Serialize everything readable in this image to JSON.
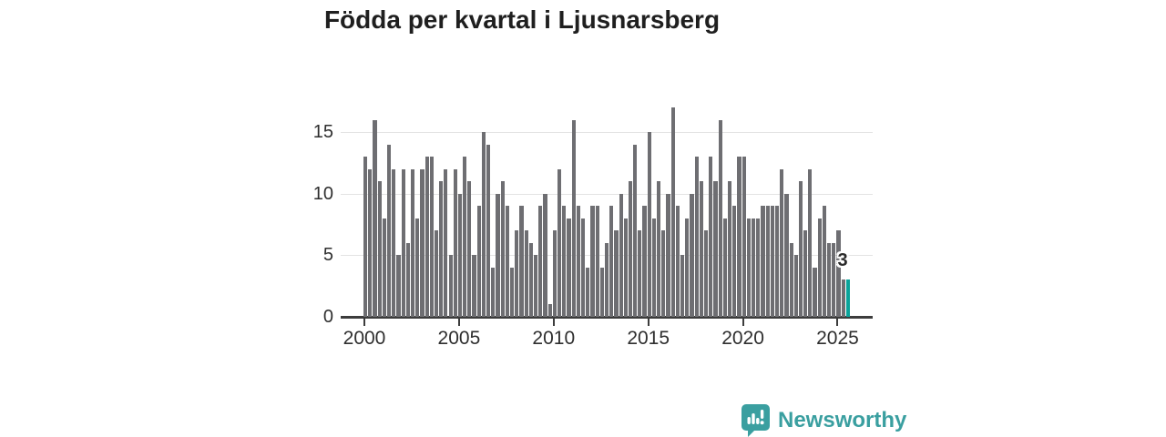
{
  "title": "Födda per kvartal i Ljusnarsberg",
  "chart_data": {
    "type": "bar",
    "title": "Födda per kvartal i Ljusnarsberg",
    "x_start": "2000 Q1",
    "x_end": "2025 Q3",
    "x_tick_labels": [
      "2000",
      "2005",
      "2010",
      "2015",
      "2020",
      "2025"
    ],
    "quarters_per_tick": 20,
    "y_tick_labels": [
      "0",
      "5",
      "10",
      "15"
    ],
    "ylim": [
      0,
      17
    ],
    "grid": "horizontal",
    "legend": "none",
    "values": [
      13,
      12,
      16,
      11,
      8,
      14,
      12,
      5,
      12,
      6,
      12,
      8,
      12,
      13,
      13,
      7,
      11,
      12,
      5,
      12,
      10,
      13,
      11,
      5,
      9,
      15,
      14,
      4,
      10,
      11,
      9,
      4,
      7,
      9,
      7,
      6,
      5,
      9,
      10,
      1,
      7,
      12,
      9,
      8,
      16,
      9,
      8,
      4,
      9,
      9,
      4,
      6,
      9,
      7,
      10,
      8,
      11,
      14,
      7,
      9,
      15,
      8,
      11,
      7,
      10,
      17,
      9,
      5,
      8,
      10,
      13,
      11,
      7,
      13,
      11,
      16,
      8,
      11,
      9,
      13,
      13,
      8,
      8,
      8,
      9,
      9,
      9,
      9,
      12,
      10,
      6,
      5,
      11,
      7,
      12,
      4,
      8,
      9,
      6,
      6,
      7,
      3,
      3
    ],
    "highlight_last_bar": true,
    "last_value_label": "3"
  },
  "annotation": {
    "latest_label": "3"
  },
  "logo": {
    "text": "Newsworthy"
  },
  "colors": {
    "bar": "#6e6e72",
    "highlight": "#0aa39a",
    "logo": "#3a9fa0",
    "axis": "#3c3c3c",
    "grid": "#e3e3e3",
    "tick_text": "#2e2e2e",
    "title_text": "#1f1f1f",
    "background": "#ffffff"
  }
}
